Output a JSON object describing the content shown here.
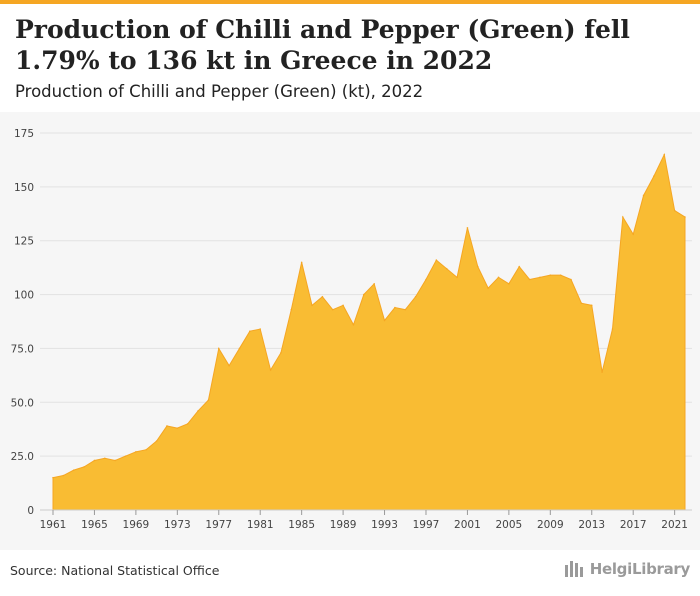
{
  "header": {
    "title": "Production of Chilli and Pepper (Green) fell 1.79% to 136 kt in Greece in 2022",
    "subtitle": "Production of Chilli and Pepper (Green) (kt), 2022"
  },
  "footer": {
    "source": "Source: National Statistical Office",
    "logo_text": "HelgiLibrary"
  },
  "colors": {
    "accent": "#f5a623",
    "area_fill": "#f9bc33",
    "area_stroke": "#f5a623",
    "grid": "#e2e2e2",
    "panel": "#f6f6f6"
  },
  "chart_data": {
    "type": "area",
    "title": "Production of Chilli and Pepper (Green) (kt), 2022",
    "xlabel": "",
    "ylabel": "",
    "ylim": [
      0,
      175
    ],
    "y_ticks": [
      "0",
      "25.0",
      "50.0",
      "75.0",
      "100",
      "125",
      "150",
      "175"
    ],
    "x_ticks": [
      "1961",
      "1965",
      "1969",
      "1973",
      "1977",
      "1981",
      "1985",
      "1989",
      "1993",
      "1997",
      "2001",
      "2005",
      "2009",
      "2013",
      "2017",
      "2021"
    ],
    "grid": true,
    "x": [
      1961,
      1962,
      1963,
      1964,
      1965,
      1966,
      1967,
      1968,
      1969,
      1970,
      1971,
      1972,
      1973,
      1974,
      1975,
      1976,
      1977,
      1978,
      1979,
      1980,
      1981,
      1982,
      1983,
      1984,
      1985,
      1986,
      1987,
      1988,
      1989,
      1990,
      1991,
      1992,
      1993,
      1994,
      1995,
      1996,
      1997,
      1998,
      1999,
      2000,
      2001,
      2002,
      2003,
      2004,
      2005,
      2006,
      2007,
      2008,
      2009,
      2010,
      2011,
      2012,
      2013,
      2014,
      2015,
      2016,
      2017,
      2018,
      2019,
      2020,
      2021,
      2022
    ],
    "series": [
      {
        "values": [
          15,
          16,
          18.5,
          20,
          23,
          24,
          23,
          25,
          27,
          28,
          32,
          39,
          38,
          40,
          46,
          51,
          75,
          67,
          75,
          83,
          84,
          65,
          73,
          93,
          115,
          95,
          99,
          93,
          95,
          86,
          100,
          105,
          88,
          94,
          93,
          99,
          107,
          116,
          112,
          108,
          131,
          113,
          103,
          108,
          105,
          113,
          107,
          108,
          109,
          109,
          107,
          96,
          95,
          64,
          84,
          136,
          128,
          146,
          155,
          165,
          139,
          136
        ]
      }
    ]
  }
}
